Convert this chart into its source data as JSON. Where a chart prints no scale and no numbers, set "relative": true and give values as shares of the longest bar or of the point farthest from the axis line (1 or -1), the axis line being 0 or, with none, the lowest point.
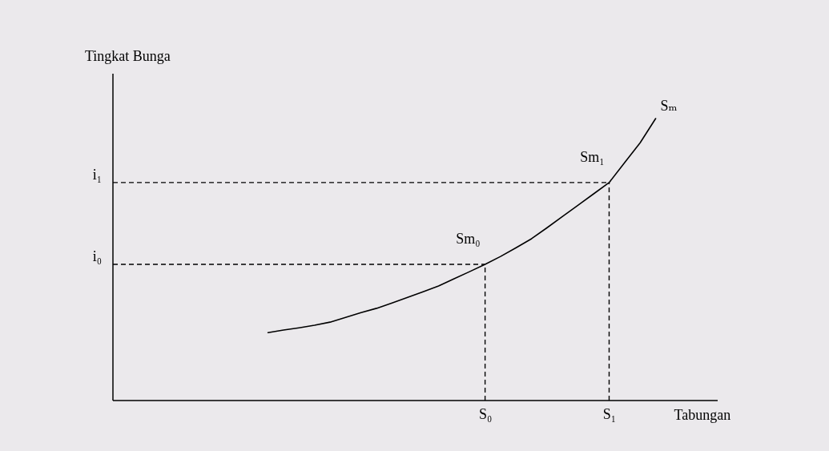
{
  "chart_data": {
    "type": "line",
    "xlabel": "Tabungan",
    "ylabel": "Tingkat Bunga",
    "relative": true,
    "marker": "none",
    "categories": [
      null,
      null,
      null,
      null,
      null,
      null,
      null,
      null,
      null,
      null,
      null,
      null,
      null,
      null,
      null,
      null,
      null,
      null,
      null,
      null,
      null,
      null,
      null,
      null,
      "S₀",
      null,
      null,
      null,
      null,
      null,
      null,
      null,
      "S₁",
      null,
      null,
      null,
      null,
      null,
      null,
      null
    ],
    "series": [
      {
        "color": "#000000",
        "line_style": "solid",
        "values": [
          null,
          null,
          null,
          null,
          null,
          null,
          null,
          null,
          null,
          null,
          0.241,
          0.25,
          0.258,
          0.267,
          0.278,
          0.295,
          0.312,
          0.327,
          0.346,
          0.366,
          0.386,
          0.406,
          0.432,
          0.457,
          0.483,
          0.511,
          0.542,
          0.574,
          0.613,
          0.653,
          0.693,
          0.733,
          0.773,
          0.844,
          0.914,
          1,
          null,
          null,
          null,
          null
        ]
      }
    ],
    "ref_lines": [
      {
        "axis": "y",
        "value": 0.483,
        "label": "i₀",
        "line_style": "dashed",
        "color": "#000000"
      },
      {
        "axis": "y",
        "value": 0.773,
        "label": "i₁",
        "line_style": "dashed",
        "color": "#000000"
      },
      {
        "axis": "x",
        "value": "S₀",
        "line_style": "dashed",
        "color": "#000000"
      },
      {
        "axis": "x",
        "value": "S₁",
        "line_style": "dashed",
        "color": "#000000"
      }
    ],
    "annotations": [
      "Sₘ",
      {
        "text": "Sm₁",
        "x": "S₁",
        "y": 0.773
      },
      {
        "text": "Sm₀",
        "x": "S₀",
        "y": 0.483
      }
    ]
  }
}
